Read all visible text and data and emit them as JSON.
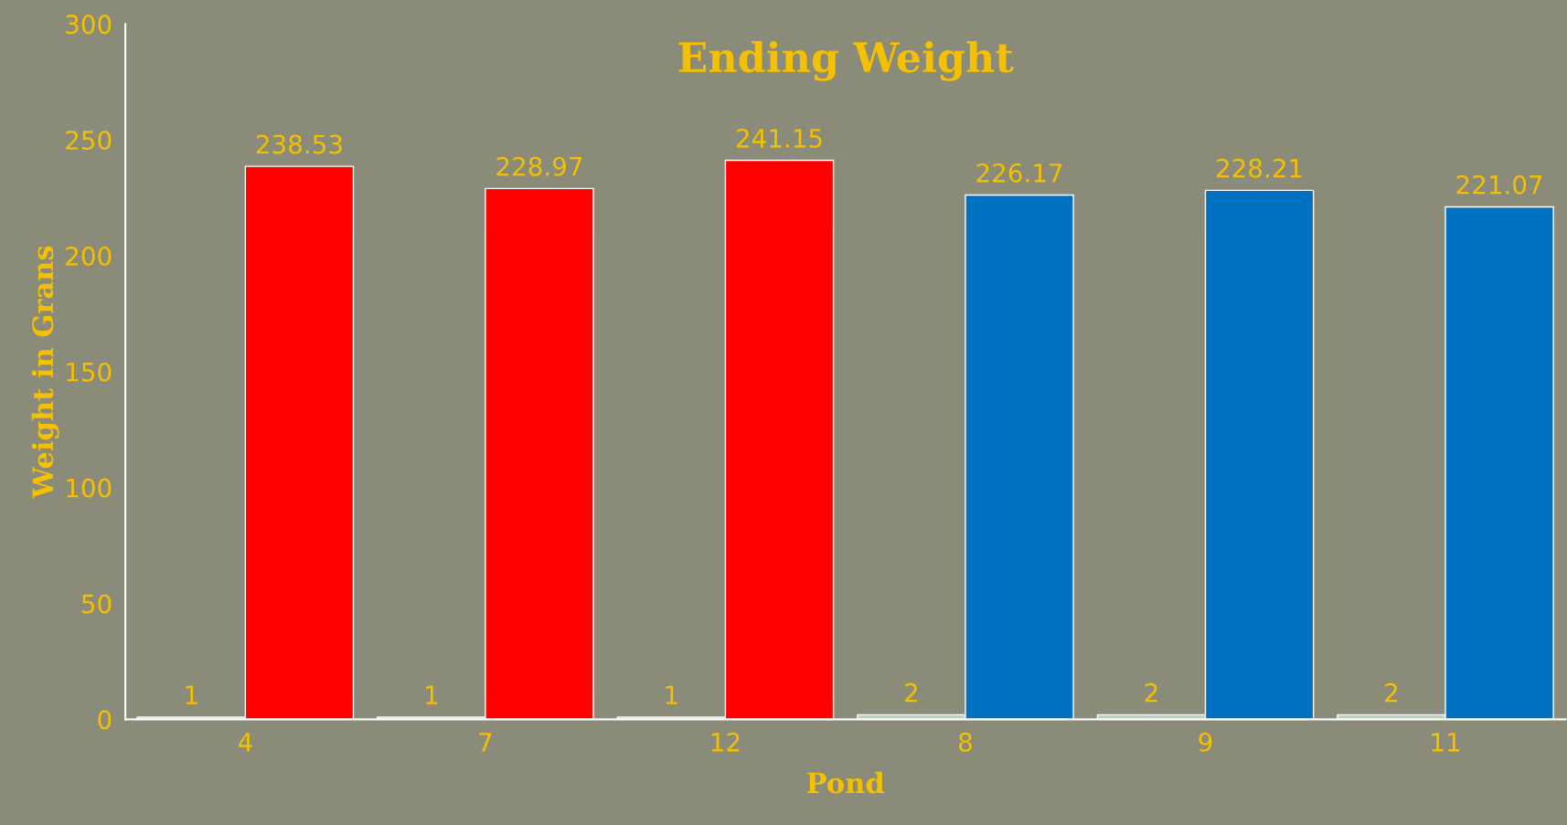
{
  "chart_data": {
    "type": "bar",
    "title": "Ending Weight",
    "xlabel": "Pond",
    "ylabel": "Weight in Grans",
    "categories": [
      "4",
      "7",
      "12",
      "8",
      "9",
      "11"
    ],
    "series": [
      {
        "colors": [
          "#d0d0c4",
          "#d0d0c4",
          "#d0d0c4",
          "#b8d4b8",
          "#b8d4b8",
          "#b8d4b8"
        ],
        "values": [
          1,
          1,
          1,
          2,
          2,
          2
        ]
      },
      {
        "colors": [
          "#ff0000",
          "#ff0000",
          "#ff0000",
          "#0070c0",
          "#0070c0",
          "#0070c0"
        ],
        "values": [
          238.53,
          228.97,
          241.15,
          226.17,
          228.21,
          221.07
        ]
      }
    ],
    "ylim": [
      0,
      300
    ],
    "yticks": [
      0,
      50,
      100,
      150,
      200,
      250,
      300
    ],
    "grid": false,
    "legend": false,
    "data_labels": true
  }
}
